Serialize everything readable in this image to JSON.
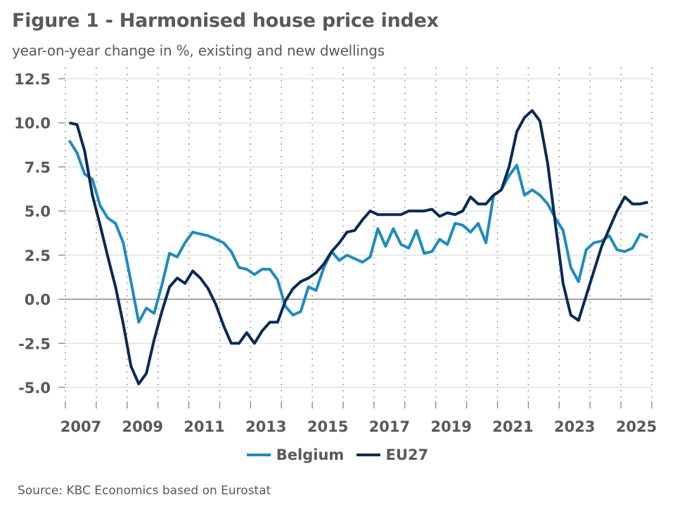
{
  "title": "Figure 1 - Harmonised house price index",
  "subtitle": "year-on-year change in %, existing and new dwellings",
  "source": "Source: KBC Economics based on Eurostat",
  "colors": {
    "Belgium": "#1f8bbf",
    "EU27": "#0b2a55",
    "text": "#595959",
    "grid": "#dcdcdc",
    "zero": "#8c8c8c",
    "dots": "#8c8c8c"
  },
  "chart_data": {
    "type": "line",
    "title": "Figure 1 - Harmonised house price index",
    "subtitle": "year-on-year change in %, existing and new dwellings",
    "xlabel": "",
    "ylabel": "",
    "frequency": "quarterly",
    "x_start": "2007Q1",
    "x_end": "2025Q4",
    "x_range_years": [
      2007,
      2026
    ],
    "xticks": [
      "2007",
      "2009",
      "2011",
      "2013",
      "2015",
      "2017",
      "2019",
      "2021",
      "2023",
      "2025"
    ],
    "ylim": [
      -5.0,
      12.5
    ],
    "yticks": [
      "12.5",
      "10.0",
      "7.5",
      "5.0",
      "2.5",
      "0.0",
      "-2.5",
      "-5.0"
    ],
    "ytick_values": [
      12.5,
      10.0,
      7.5,
      5.0,
      2.5,
      0.0,
      -2.5,
      -5.0
    ],
    "grid": "horizontal solid, vertical dotted per year",
    "legend_position": "bottom",
    "series": [
      {
        "name": "Belgium",
        "values": [
          9.0,
          8.3,
          7.1,
          6.8,
          5.3,
          4.6,
          4.3,
          3.2,
          1.0,
          -1.3,
          -0.5,
          -0.8,
          0.8,
          2.6,
          2.4,
          3.2,
          3.8,
          3.7,
          3.6,
          3.4,
          3.2,
          2.7,
          1.8,
          1.7,
          1.4,
          1.7,
          1.7,
          1.1,
          -0.4,
          -0.9,
          -0.7,
          0.7,
          0.5,
          1.8,
          2.7,
          2.2,
          2.5,
          2.3,
          2.1,
          2.4,
          4.0,
          3.0,
          4.0,
          3.1,
          2.9,
          3.9,
          2.6,
          2.7,
          3.4,
          3.1,
          4.3,
          4.2,
          3.8,
          4.3,
          3.2,
          5.9,
          6.2,
          7.0,
          7.6,
          5.9,
          6.2,
          5.9,
          5.4,
          4.6,
          3.9,
          1.8,
          1.0,
          2.8,
          3.2,
          3.3,
          3.6,
          2.8,
          2.7,
          2.9,
          3.7,
          3.5
        ]
      },
      {
        "name": "EU27",
        "values": [
          10.0,
          9.9,
          8.4,
          5.9,
          4.2,
          2.4,
          0.7,
          -1.4,
          -3.8,
          -4.8,
          -4.2,
          -2.3,
          -0.7,
          0.7,
          1.2,
          0.9,
          1.6,
          1.2,
          0.6,
          -0.3,
          -1.5,
          -2.5,
          -2.5,
          -1.9,
          -2.5,
          -1.8,
          -1.3,
          -1.3,
          -0.1,
          0.6,
          1.0,
          1.2,
          1.5,
          2.0,
          2.7,
          3.2,
          3.8,
          3.9,
          4.5,
          5.0,
          4.8,
          4.8,
          4.8,
          4.8,
          5.0,
          5.0,
          5.0,
          5.1,
          4.7,
          4.9,
          4.8,
          5.0,
          5.8,
          5.4,
          5.4,
          5.9,
          6.2,
          7.5,
          9.5,
          10.3,
          10.7,
          10.1,
          7.7,
          4.3,
          0.9,
          -0.9,
          -1.2,
          0.2,
          1.6,
          3.0,
          4.0,
          5.0,
          5.8,
          5.4,
          5.4,
          5.5
        ]
      }
    ]
  }
}
